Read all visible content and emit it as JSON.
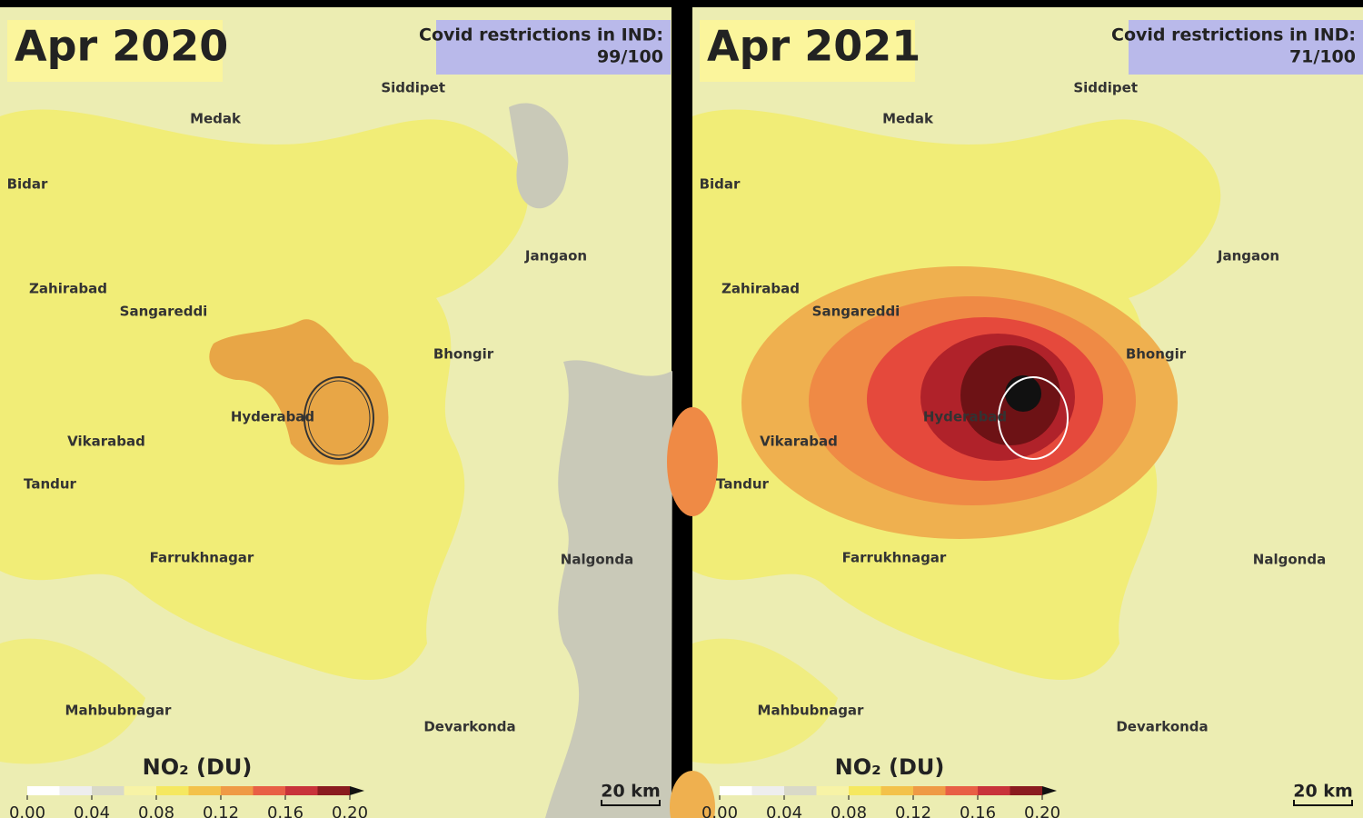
{
  "panels": [
    {
      "title": "Apr 2020",
      "restriction_label": "Covid restrictions in IND:",
      "restriction_value": "99/100"
    },
    {
      "title": "Apr 2021",
      "restriction_label": "Covid restrictions in IND:",
      "restriction_value": "71/100"
    }
  ],
  "cities": [
    "Siddipet",
    "Medak",
    "Bidar",
    "Jangaon",
    "Zahirabad",
    "Sangareddi",
    "Bhongir",
    "Hyderabad",
    "Vikarabad",
    "Tandur",
    "Farrukhnagar",
    "Nalgonda",
    "Mahbubnagar",
    "Devarkonda"
  ],
  "legend": {
    "title": "NO₂ (DU)",
    "ticks": [
      {
        "value": 0,
        "label": "0.00"
      },
      {
        "value": 0.04,
        "label": "0.04"
      },
      {
        "value": 0.08,
        "label": "0.08"
      },
      {
        "value": 0.12,
        "label": "0.12"
      },
      {
        "value": 0.16,
        "label": "0.16"
      },
      {
        "value": 0.2,
        "label": "0.20"
      }
    ],
    "range": [
      0,
      0.2
    ]
  },
  "scale": "20 km"
}
